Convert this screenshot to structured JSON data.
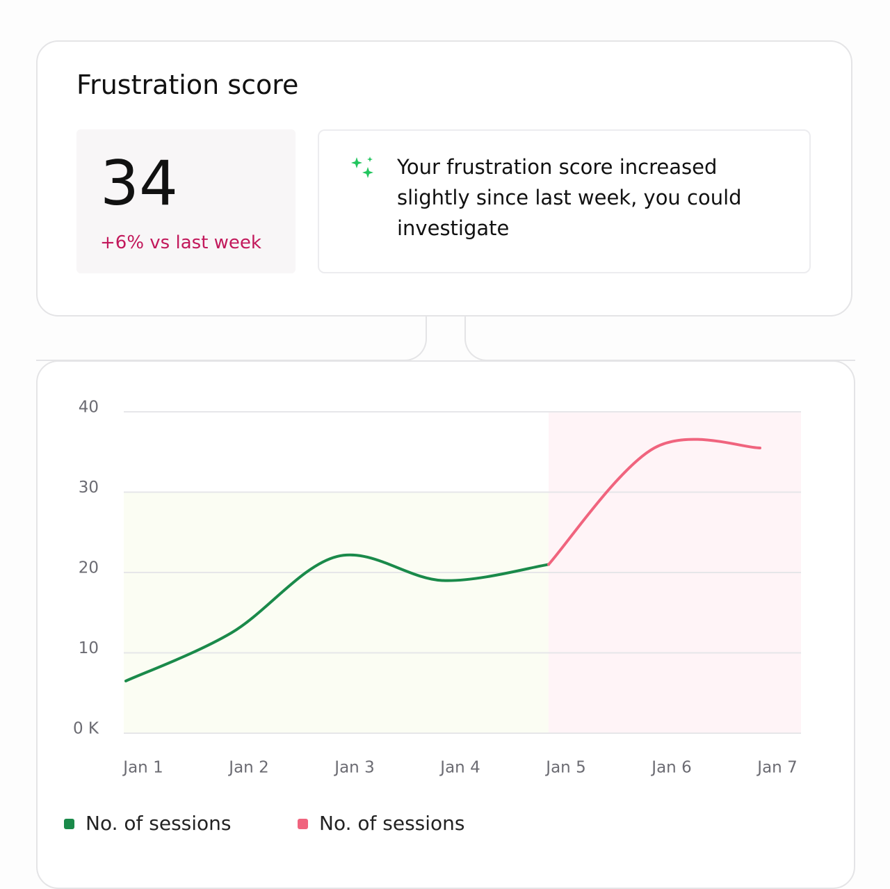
{
  "card": {
    "title": "Frustration score",
    "score": "34",
    "change": "+6% vs last week",
    "insight": "Your frustration score increased slightly since last week, you could investigate"
  },
  "chart_data": {
    "type": "line",
    "categories": [
      "Jan 1",
      "Jan 2",
      "Jan 3",
      "Jan 4",
      "Jan 5",
      "Jan 6",
      "Jan 7"
    ],
    "series": [
      {
        "name": "No. of sessions",
        "color": "#1a8a4a",
        "shade": "#fbfdf3",
        "values": [
          6.5,
          12.5,
          22,
          19,
          21,
          null,
          null
        ]
      },
      {
        "name": "No. of sessions",
        "color": "#f0647e",
        "shade": "#fff4f7",
        "values": [
          null,
          null,
          null,
          null,
          21,
          35.5,
          35.5
        ]
      }
    ],
    "ylim": [
      0,
      40
    ],
    "yticks": [
      {
        "value": 0,
        "label": "0 K"
      },
      10,
      20,
      30,
      40
    ],
    "grid": true
  }
}
